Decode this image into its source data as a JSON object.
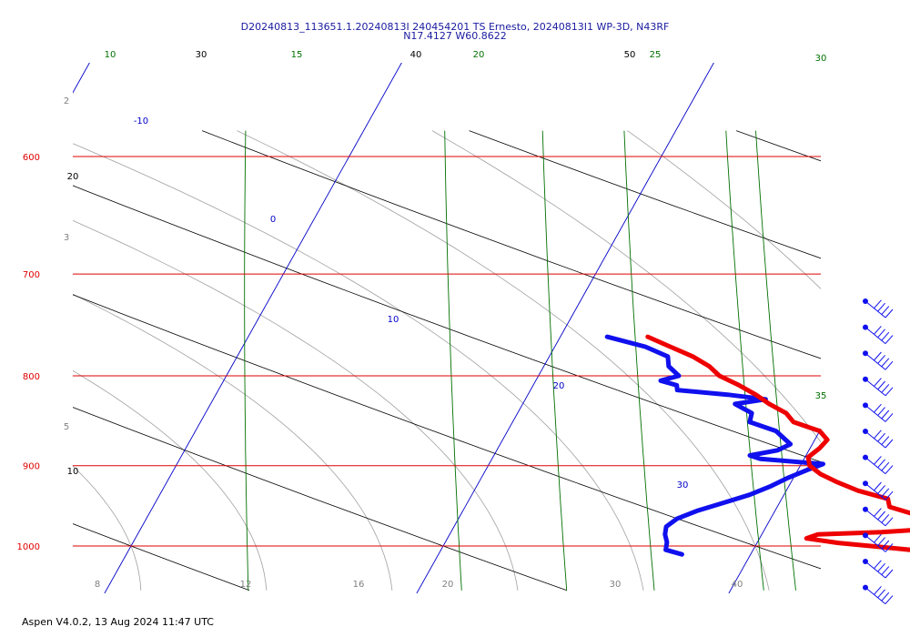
{
  "header": {
    "title_line1": "D20240813_113651.1.20240813I 240454201 TS Ernesto, 20240813I1 WP-3D, N43RF",
    "title_line2": "N17.4127 W60.8622"
  },
  "footer": {
    "text": "Aspen V4.0.2, 13 Aug 2024  11:47 UTC"
  },
  "colors": {
    "isobar": "#e00000",
    "isotherm": "#0000c8",
    "dry_adiabat": "#000000",
    "moist_adiabat": "#a0a0a0",
    "mixing_ratio": "#007000",
    "temperature": "#ee0000",
    "dewpoint": "#1010ee",
    "wind": "#1010ee"
  },
  "chart_data": {
    "type": "skew-t",
    "pressure_range_hpa": [
      1030,
      600
    ],
    "isobars_hpa": [
      "600",
      "700",
      "800",
      "900",
      "1000"
    ],
    "isotherm_labels": [
      "-10",
      "0",
      "10",
      "20",
      "30"
    ],
    "bottom_temperature_labels": [
      "8",
      "12",
      "16",
      "20",
      "30",
      "40"
    ],
    "mixing_ratio_labels": [
      "10",
      "15",
      "20",
      "25",
      "30",
      "35"
    ],
    "dry_adiabat_top_labels": [
      "30",
      "40",
      "50"
    ],
    "left_edge_labels": [
      "2",
      "3",
      "5",
      "20",
      "10"
    ],
    "temperature_profile": [
      [
        1011,
        26.5
      ],
      [
        1008,
        25.8
      ],
      [
        1003,
        24.5
      ],
      [
        996,
        22.6
      ],
      [
        990,
        21.5
      ],
      [
        985,
        21.8
      ],
      [
        982,
        23.8
      ],
      [
        976,
        26.0
      ],
      [
        970,
        25.6
      ],
      [
        960,
        24.6
      ],
      [
        950,
        23.6
      ],
      [
        940,
        23.4
      ],
      [
        930,
        22.3
      ],
      [
        920,
        21.5
      ],
      [
        910,
        20.8
      ],
      [
        900,
        20.3
      ],
      [
        890,
        20.1
      ],
      [
        880,
        20.3
      ],
      [
        870,
        20.4
      ],
      [
        860,
        20.0
      ],
      [
        850,
        19.0
      ],
      [
        840,
        18.6
      ],
      [
        830,
        17.9
      ],
      [
        820,
        17.3
      ],
      [
        810,
        16.6
      ],
      [
        800,
        15.8
      ],
      [
        790,
        15.3
      ],
      [
        780,
        14.6
      ],
      [
        770,
        13.7
      ],
      [
        760,
        12.8
      ]
    ],
    "dewpoint_profile": [
      [
        1011,
        17.8
      ],
      [
        1005,
        17.2
      ],
      [
        995,
        17.1
      ],
      [
        985,
        16.9
      ],
      [
        975,
        16.8
      ],
      [
        965,
        17.0
      ],
      [
        955,
        17.5
      ],
      [
        945,
        18.2
      ],
      [
        935,
        18.9
      ],
      [
        925,
        19.4
      ],
      [
        915,
        19.8
      ],
      [
        905,
        20.3
      ],
      [
        898,
        20.7
      ],
      [
        892,
        18.6
      ],
      [
        888,
        18.2
      ],
      [
        882,
        19.0
      ],
      [
        875,
        19.3
      ],
      [
        860,
        18.6
      ],
      [
        850,
        17.6
      ],
      [
        840,
        17.5
      ],
      [
        830,
        16.8
      ],
      [
        825,
        17.7
      ],
      [
        820,
        16.4
      ],
      [
        815,
        14.7
      ],
      [
        810,
        14.6
      ],
      [
        805,
        14.0
      ],
      [
        800,
        14.5
      ],
      [
        790,
        14.0
      ],
      [
        780,
        13.8
      ],
      [
        770,
        12.9
      ],
      [
        760,
        11.5
      ]
    ],
    "wind_barbs_count": 12
  }
}
